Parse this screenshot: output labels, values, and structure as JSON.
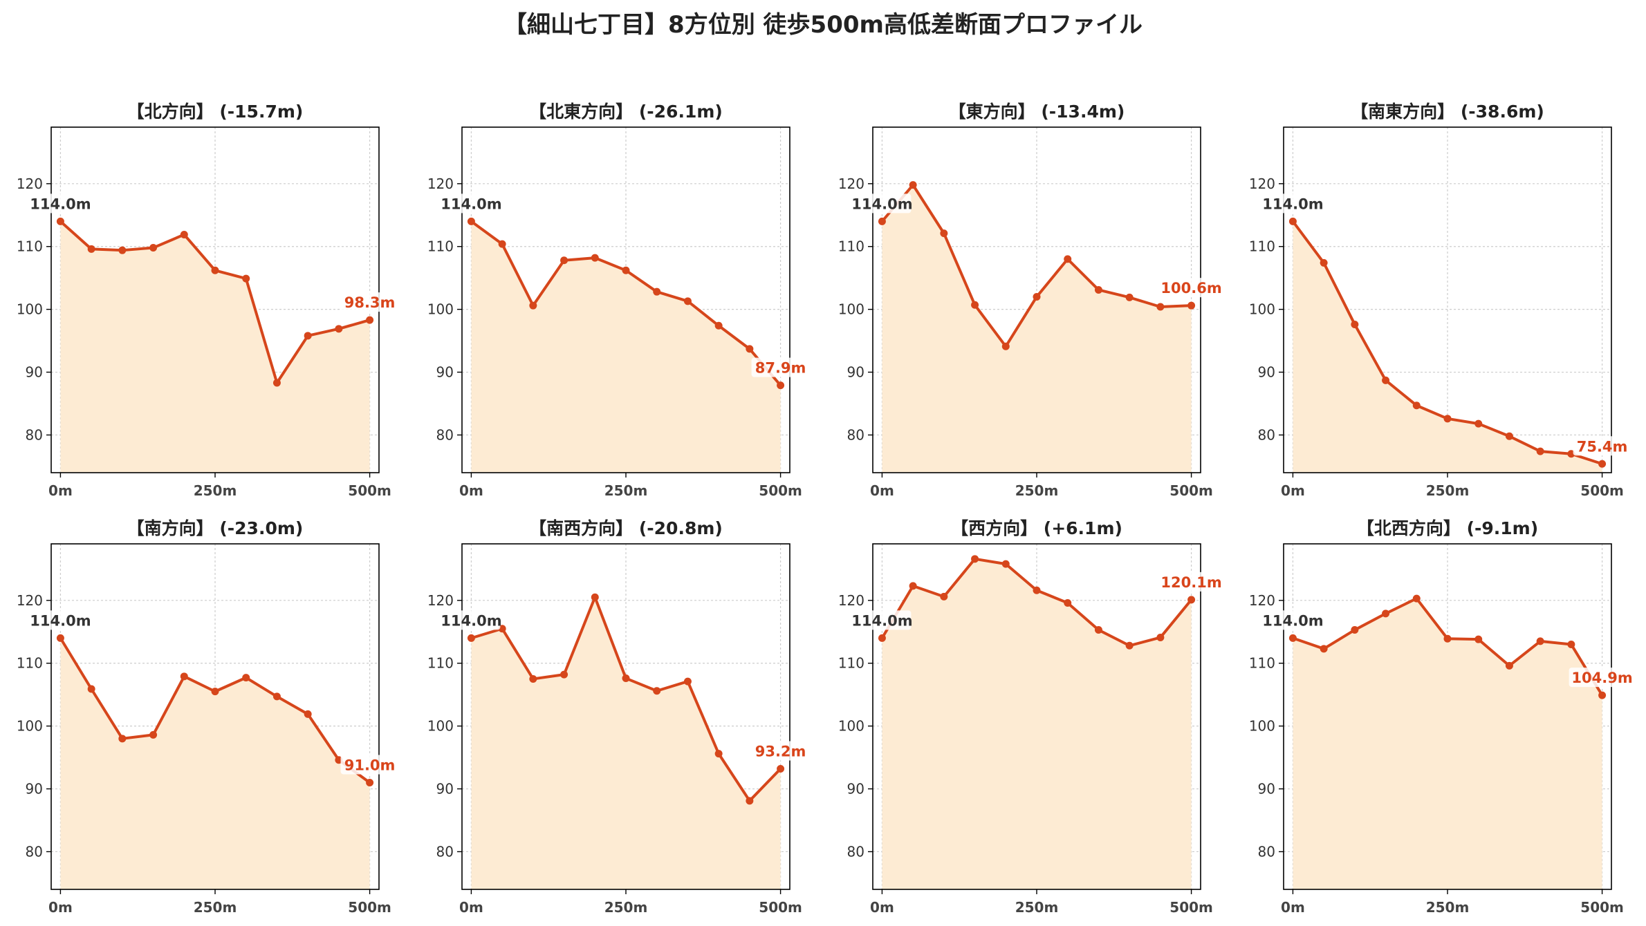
{
  "title": "【細山七丁目】8方位別 徒歩500m高低差断面プロファイル",
  "colors": {
    "line": "#d6461b",
    "fill": "#fdebd3",
    "grid": "#cccccc",
    "start_label": "#333333",
    "end_label": "#d9451b"
  },
  "chart_data": [
    {
      "type": "area",
      "title": "【北方向】 (-15.7m)",
      "x": [
        0,
        50,
        100,
        150,
        200,
        250,
        300,
        350,
        400,
        450,
        500
      ],
      "values": [
        114.0,
        109.6,
        109.4,
        109.8,
        111.9,
        106.2,
        104.9,
        88.3,
        95.8,
        96.9,
        98.3
      ],
      "start_label": "114.0m",
      "end_label": "98.3m",
      "ylim": [
        74,
        129
      ],
      "xlim": [
        -15,
        515
      ],
      "yticks": [
        "80",
        "90",
        "100",
        "110",
        "120"
      ],
      "xticks": [
        "0m",
        "250m",
        "500m"
      ],
      "grid": true
    },
    {
      "type": "area",
      "title": "【北東方向】 (-26.1m)",
      "x": [
        0,
        50,
        100,
        150,
        200,
        250,
        300,
        350,
        400,
        450,
        500
      ],
      "values": [
        114.0,
        110.4,
        100.6,
        107.8,
        108.2,
        106.2,
        102.8,
        101.3,
        97.4,
        93.7,
        87.9
      ],
      "start_label": "114.0m",
      "end_label": "87.9m",
      "ylim": [
        74,
        129
      ],
      "xlim": [
        -15,
        515
      ],
      "yticks": [
        "80",
        "90",
        "100",
        "110",
        "120"
      ],
      "xticks": [
        "0m",
        "250m",
        "500m"
      ],
      "grid": true
    },
    {
      "type": "area",
      "title": "【東方向】 (-13.4m)",
      "x": [
        0,
        50,
        100,
        150,
        200,
        250,
        300,
        350,
        400,
        450,
        500
      ],
      "values": [
        114.0,
        119.8,
        112.1,
        100.7,
        94.1,
        102.0,
        108.0,
        103.1,
        101.9,
        100.4,
        100.6
      ],
      "start_label": "114.0m",
      "end_label": "100.6m",
      "ylim": [
        74,
        129
      ],
      "xlim": [
        -15,
        515
      ],
      "yticks": [
        "80",
        "90",
        "100",
        "110",
        "120"
      ],
      "xticks": [
        "0m",
        "250m",
        "500m"
      ],
      "grid": true
    },
    {
      "type": "area",
      "title": "【南東方向】 (-38.6m)",
      "x": [
        0,
        50,
        100,
        150,
        200,
        250,
        300,
        350,
        400,
        450,
        500
      ],
      "values": [
        114.0,
        107.4,
        97.6,
        88.7,
        84.7,
        82.6,
        81.8,
        79.8,
        77.4,
        77.0,
        75.4
      ],
      "start_label": "114.0m",
      "end_label": "75.4m",
      "ylim": [
        74,
        129
      ],
      "xlim": [
        -15,
        515
      ],
      "yticks": [
        "80",
        "90",
        "100",
        "110",
        "120"
      ],
      "xticks": [
        "0m",
        "250m",
        "500m"
      ],
      "grid": true
    },
    {
      "type": "area",
      "title": "【南方向】 (-23.0m)",
      "x": [
        0,
        50,
        100,
        150,
        200,
        250,
        300,
        350,
        400,
        450,
        500
      ],
      "values": [
        114.0,
        105.9,
        98.0,
        98.6,
        107.9,
        105.5,
        107.7,
        104.7,
        101.9,
        94.6,
        91.0
      ],
      "start_label": "114.0m",
      "end_label": "91.0m",
      "ylim": [
        74,
        129
      ],
      "xlim": [
        -15,
        515
      ],
      "yticks": [
        "80",
        "90",
        "100",
        "110",
        "120"
      ],
      "xticks": [
        "0m",
        "250m",
        "500m"
      ],
      "grid": true
    },
    {
      "type": "area",
      "title": "【南西方向】 (-20.8m)",
      "x": [
        0,
        50,
        100,
        150,
        200,
        250,
        300,
        350,
        400,
        450,
        500
      ],
      "values": [
        114.0,
        115.5,
        107.5,
        108.2,
        120.5,
        107.6,
        105.6,
        107.1,
        95.6,
        88.1,
        93.2
      ],
      "start_label": "114.0m",
      "end_label": "93.2m",
      "ylim": [
        74,
        129
      ],
      "xlim": [
        -15,
        515
      ],
      "yticks": [
        "80",
        "90",
        "100",
        "110",
        "120"
      ],
      "xticks": [
        "0m",
        "250m",
        "500m"
      ],
      "grid": true
    },
    {
      "type": "area",
      "title": "【西方向】 (+6.1m)",
      "x": [
        0,
        50,
        100,
        150,
        200,
        250,
        300,
        350,
        400,
        450,
        500
      ],
      "values": [
        114.0,
        122.3,
        120.6,
        126.6,
        125.8,
        121.6,
        119.6,
        115.3,
        112.8,
        114.1,
        120.1
      ],
      "start_label": "114.0m",
      "end_label": "120.1m",
      "ylim": [
        74,
        129
      ],
      "xlim": [
        -15,
        515
      ],
      "yticks": [
        "80",
        "90",
        "100",
        "110",
        "120"
      ],
      "xticks": [
        "0m",
        "250m",
        "500m"
      ],
      "grid": true
    },
    {
      "type": "area",
      "title": "【北西方向】 (-9.1m)",
      "x": [
        0,
        50,
        100,
        150,
        200,
        250,
        300,
        350,
        400,
        450,
        500
      ],
      "values": [
        114.0,
        112.3,
        115.3,
        117.9,
        120.3,
        113.9,
        113.8,
        109.6,
        113.5,
        113.0,
        104.9
      ],
      "start_label": "114.0m",
      "end_label": "104.9m",
      "ylim": [
        74,
        129
      ],
      "xlim": [
        -15,
        515
      ],
      "yticks": [
        "80",
        "90",
        "100",
        "110",
        "120"
      ],
      "xticks": [
        "0m",
        "250m",
        "500m"
      ],
      "grid": true
    }
  ]
}
